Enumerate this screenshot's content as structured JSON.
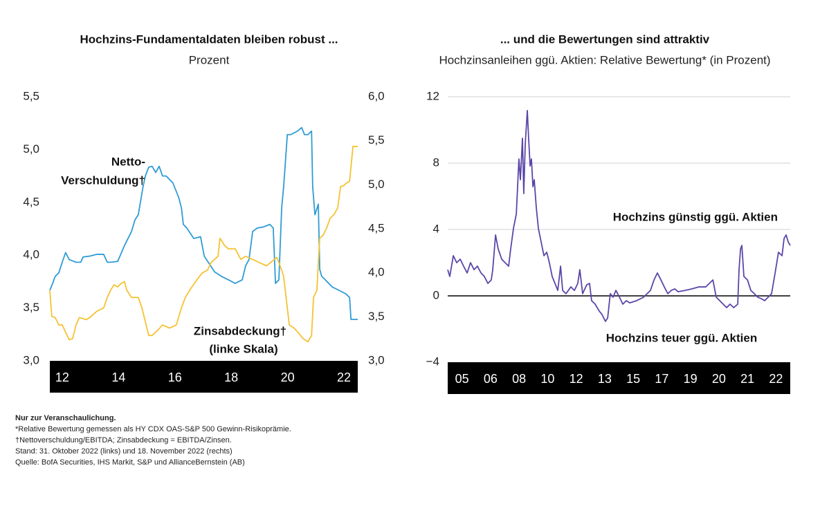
{
  "chart_data": [
    {
      "type": "line",
      "title": "Hochzins-Fundamentaldaten bleiben robust ...",
      "subtitle": "Prozent",
      "xlim": [
        2011.56,
        2022.49
      ],
      "xticks": [
        {
          "value": 2012,
          "label": "12"
        },
        {
          "value": 2014,
          "label": "14"
        },
        {
          "value": 2016,
          "label": "16"
        },
        {
          "value": 2018,
          "label": "18"
        },
        {
          "value": 2020,
          "label": "20"
        },
        {
          "value": 2022,
          "label": "22"
        }
      ],
      "ylim": [
        3.0,
        5.5
      ],
      "yticks": [
        {
          "value": 3.0,
          "label": "3,0"
        },
        {
          "value": 3.5,
          "label": "3,5"
        },
        {
          "value": 4.0,
          "label": "4,0"
        },
        {
          "value": 4.5,
          "label": "4,5"
        },
        {
          "value": 5.0,
          "label": "5,0"
        },
        {
          "value": 5.5,
          "label": "5,5"
        }
      ],
      "y2lim": [
        3.0,
        6.0
      ],
      "y2ticks": [
        {
          "value": 3.0,
          "label": "3,0"
        },
        {
          "value": 3.5,
          "label": "3,5"
        },
        {
          "value": 4.0,
          "label": "4,0"
        },
        {
          "value": 4.5,
          "label": "4,5"
        },
        {
          "value": 5.0,
          "label": "5,0"
        },
        {
          "value": 5.5,
          "label": "5,5"
        },
        {
          "value": 6.0,
          "label": "6,0"
        }
      ],
      "grid": false,
      "annotations": [
        "Netto-",
        "Verschuldung†",
        "Zinsabdeckung†",
        "(linke Skala)"
      ],
      "series": [
        {
          "name": "Netto-Verschuldung",
          "color": "#2e9bd6",
          "axis": "y2",
          "x": [
            2011.56,
            2011.66,
            2011.75,
            2011.88,
            2012,
            2012.12,
            2012.25,
            2012.49,
            2012.66,
            2012.74,
            2012.98,
            2013.23,
            2013.47,
            2013.6,
            2013.72,
            2013.97,
            2014.21,
            2014.46,
            2014.58,
            2014.7,
            2014.87,
            2014.95,
            2015.07,
            2015.19,
            2015.32,
            2015.44,
            2015.56,
            2015.69,
            2015.93,
            2016.13,
            2016.23,
            2016.3,
            2016.42,
            2016.67,
            2016.91,
            2017.04,
            2017.41,
            2017.65,
            2017.9,
            2018.14,
            2018.39,
            2018.51,
            2018.63,
            2018.76,
            2018.93,
            2019.13,
            2019.37,
            2019.49,
            2019.57,
            2019.69,
            2019.79,
            2019.86,
            2019.99,
            2020.11,
            2020.35,
            2020.5,
            2020.6,
            2020.72,
            2020.85,
            2020.89,
            2020.97,
            2021.09,
            2021.14,
            2021.21,
            2021.34,
            2021.46,
            2021.58,
            2021.83,
            2022.07,
            2022.2,
            2022.25,
            2022.49
          ],
          "values": [
            3.8,
            3.88,
            3.96,
            4.0,
            4.12,
            4.23,
            4.15,
            4.12,
            4.12,
            4.18,
            4.19,
            4.21,
            4.21,
            4.12,
            4.12,
            4.13,
            4.31,
            4.47,
            4.6,
            4.66,
            4.98,
            5.1,
            5.2,
            5.21,
            5.14,
            5.21,
            5.1,
            5.1,
            5.02,
            4.86,
            4.74,
            4.55,
            4.51,
            4.39,
            4.41,
            4.19,
            4.01,
            3.96,
            3.92,
            3.88,
            3.92,
            4.08,
            4.15,
            4.47,
            4.51,
            4.52,
            4.55,
            4.51,
            3.88,
            3.92,
            4.74,
            4.98,
            5.57,
            5.57,
            5.61,
            5.65,
            5.57,
            5.57,
            5.61,
            4.98,
            4.66,
            4.78,
            4.04,
            3.96,
            3.92,
            3.88,
            3.84,
            3.8,
            3.76,
            3.72,
            3.47,
            3.47
          ]
        },
        {
          "name": "Zinsabdeckung",
          "color": "#f5c232",
          "axis": "y",
          "x": [
            2011.56,
            2011.63,
            2011.75,
            2011.88,
            2012,
            2012.12,
            2012.25,
            2012.37,
            2012.49,
            2012.61,
            2012.86,
            2012.98,
            2013.23,
            2013.47,
            2013.6,
            2013.72,
            2013.84,
            2013.97,
            2014.08,
            2014.21,
            2014.29,
            2014.46,
            2014.7,
            2014.83,
            2014.95,
            2015.07,
            2015.19,
            2015.39,
            2015.56,
            2015.81,
            2016.05,
            2016.23,
            2016.37,
            2016.55,
            2016.79,
            2016.96,
            2017.16,
            2017.28,
            2017.53,
            2017.6,
            2017.77,
            2017.9,
            2018.14,
            2018.34,
            2018.51,
            2018.76,
            2019,
            2019.25,
            2019.44,
            2019.62,
            2019.79,
            2019.86,
            2019.99,
            2020.06,
            2020.23,
            2020.4,
            2020.55,
            2020.72,
            2020.85,
            2020.92,
            2021.04,
            2021.09,
            2021.14,
            2021.26,
            2021.39,
            2021.51,
            2021.66,
            2021.78,
            2021.88,
            2022,
            2022.07,
            2022.2,
            2022.32,
            2022.49
          ],
          "values": [
            3.67,
            3.42,
            3.41,
            3.34,
            3.34,
            3.27,
            3.2,
            3.21,
            3.34,
            3.41,
            3.39,
            3.41,
            3.47,
            3.5,
            3.6,
            3.67,
            3.72,
            3.7,
            3.73,
            3.75,
            3.67,
            3.6,
            3.6,
            3.5,
            3.37,
            3.24,
            3.24,
            3.29,
            3.34,
            3.31,
            3.34,
            3.5,
            3.6,
            3.68,
            3.77,
            3.83,
            3.86,
            3.93,
            3.99,
            4.16,
            4.09,
            4.06,
            4.06,
            3.96,
            3.99,
            3.96,
            3.93,
            3.9,
            3.94,
            3.98,
            3.86,
            3.8,
            3.5,
            3.34,
            3.31,
            3.26,
            3.21,
            3.18,
            3.24,
            3.6,
            3.67,
            3.93,
            4.16,
            4.19,
            4.26,
            4.35,
            4.39,
            4.45,
            4.65,
            4.66,
            4.68,
            4.7,
            5.03,
            5.03
          ]
        }
      ]
    },
    {
      "type": "line",
      "title": "... und die Bewertungen sind attraktiv",
      "subtitle": "Hochzinsanleihen ggü. Aktien: Relative Bewertung* (in Prozent)",
      "xlim": [
        2004.6,
        2022.93
      ],
      "band_labels": [
        "05",
        "06",
        "08",
        "10",
        "12",
        "13",
        "15",
        "17",
        "19",
        "20",
        "21",
        "22"
      ],
      "ylim": [
        -4,
        12
      ],
      "yticks": [
        {
          "value": -4,
          "label": "−4"
        },
        0,
        4,
        8,
        12
      ],
      "grid": true,
      "zero_line": true,
      "annotations": [
        "Hochzins günstig ggü. Aktien",
        "Hochzins teuer ggü. Aktien"
      ],
      "series": [
        {
          "name": "Relative Bewertung",
          "color": "#5b45a8",
          "axis": "y",
          "x": [
            2004.6,
            2004.71,
            2004.9,
            2005.08,
            2005.27,
            2005.45,
            2005.64,
            2005.82,
            2006.01,
            2006.19,
            2006.38,
            2006.56,
            2006.75,
            2006.93,
            2007.01,
            2007.16,
            2007.3,
            2007.49,
            2007.67,
            2007.86,
            2007.97,
            2008.12,
            2008.27,
            2008.34,
            2008.41,
            2008.49,
            2008.6,
            2008.67,
            2008.75,
            2008.86,
            2008.93,
            2009.01,
            2009.08,
            2009.16,
            2009.23,
            2009.34,
            2009.45,
            2009.6,
            2009.75,
            2009.9,
            2010.04,
            2010.19,
            2010.34,
            2010.49,
            2010.64,
            2010.75,
            2010.93,
            2011.19,
            2011.38,
            2011.56,
            2011.67,
            2011.82,
            2012.04,
            2012.19,
            2012.3,
            2012.49,
            2012.71,
            2012.86,
            2013.04,
            2013.16,
            2013.3,
            2013.45,
            2013.6,
            2013.79,
            2013.97,
            2014.16,
            2014.34,
            2014.71,
            2015.08,
            2015.45,
            2015.64,
            2015.82,
            2016.01,
            2016.19,
            2016.38,
            2016.56,
            2016.75,
            2016.93,
            2017.3,
            2017.67,
            2018.04,
            2018.41,
            2018.79,
            2018.97,
            2019.16,
            2019.34,
            2019.53,
            2019.71,
            2019.9,
            2020.12,
            2020.19,
            2020.27,
            2020.34,
            2020.45,
            2020.64,
            2020.82,
            2021.01,
            2021.19,
            2021.38,
            2021.56,
            2021.75,
            2021.93,
            2022.12,
            2022.3,
            2022.49,
            2022.6,
            2022.71,
            2022.82,
            2022.93
          ],
          "values": [
            1.58,
            1.17,
            2.42,
            2.0,
            2.21,
            1.79,
            1.38,
            2.0,
            1.58,
            1.79,
            1.38,
            1.17,
            0.75,
            0.96,
            1.58,
            3.67,
            2.83,
            2.21,
            2.0,
            1.79,
            2.83,
            4.08,
            4.92,
            6.58,
            8.25,
            7.0,
            9.5,
            6.17,
            9.17,
            11.17,
            9.5,
            7.83,
            8.25,
            6.58,
            7.0,
            5.33,
            4.08,
            3.25,
            2.42,
            2.63,
            2.0,
            1.17,
            0.75,
            0.33,
            1.79,
            0.33,
            0.13,
            0.54,
            0.33,
            0.75,
            1.58,
            0.13,
            0.67,
            0.75,
            -0.29,
            -0.5,
            -0.92,
            -1.13,
            -1.54,
            -1.33,
            0.13,
            -0.08,
            0.33,
            -0.08,
            -0.5,
            -0.29,
            -0.42,
            -0.29,
            -0.08,
            0.33,
            0.96,
            1.38,
            0.96,
            0.54,
            0.13,
            0.33,
            0.42,
            0.25,
            0.33,
            0.42,
            0.54,
            0.54,
            0.96,
            -0.08,
            -0.29,
            -0.5,
            -0.71,
            -0.5,
            -0.71,
            -0.5,
            1.58,
            2.83,
            3.04,
            1.17,
            0.96,
            0.33,
            0.13,
            -0.08,
            -0.17,
            -0.29,
            -0.08,
            0.13,
            1.38,
            2.63,
            2.42,
            3.46,
            3.67,
            3.25,
            3.04
          ]
        }
      ]
    }
  ],
  "notes": [
    "Nur zur Veranschaulichung.",
    "*Relative Bewertung gemessen als HY CDX OAS-S&P 500 Gewinn-Risikoprämie.",
    "†Nettoverschuldung/EBITDA; Zinsabdeckung = EBITDA/Zinsen.",
    "Stand: 31. Oktober 2022 (links) und 18. November 2022 (rechts)",
    "Quelle: BofA Securities, IHS Markit, S&P und AllianceBernstein (AB)"
  ]
}
